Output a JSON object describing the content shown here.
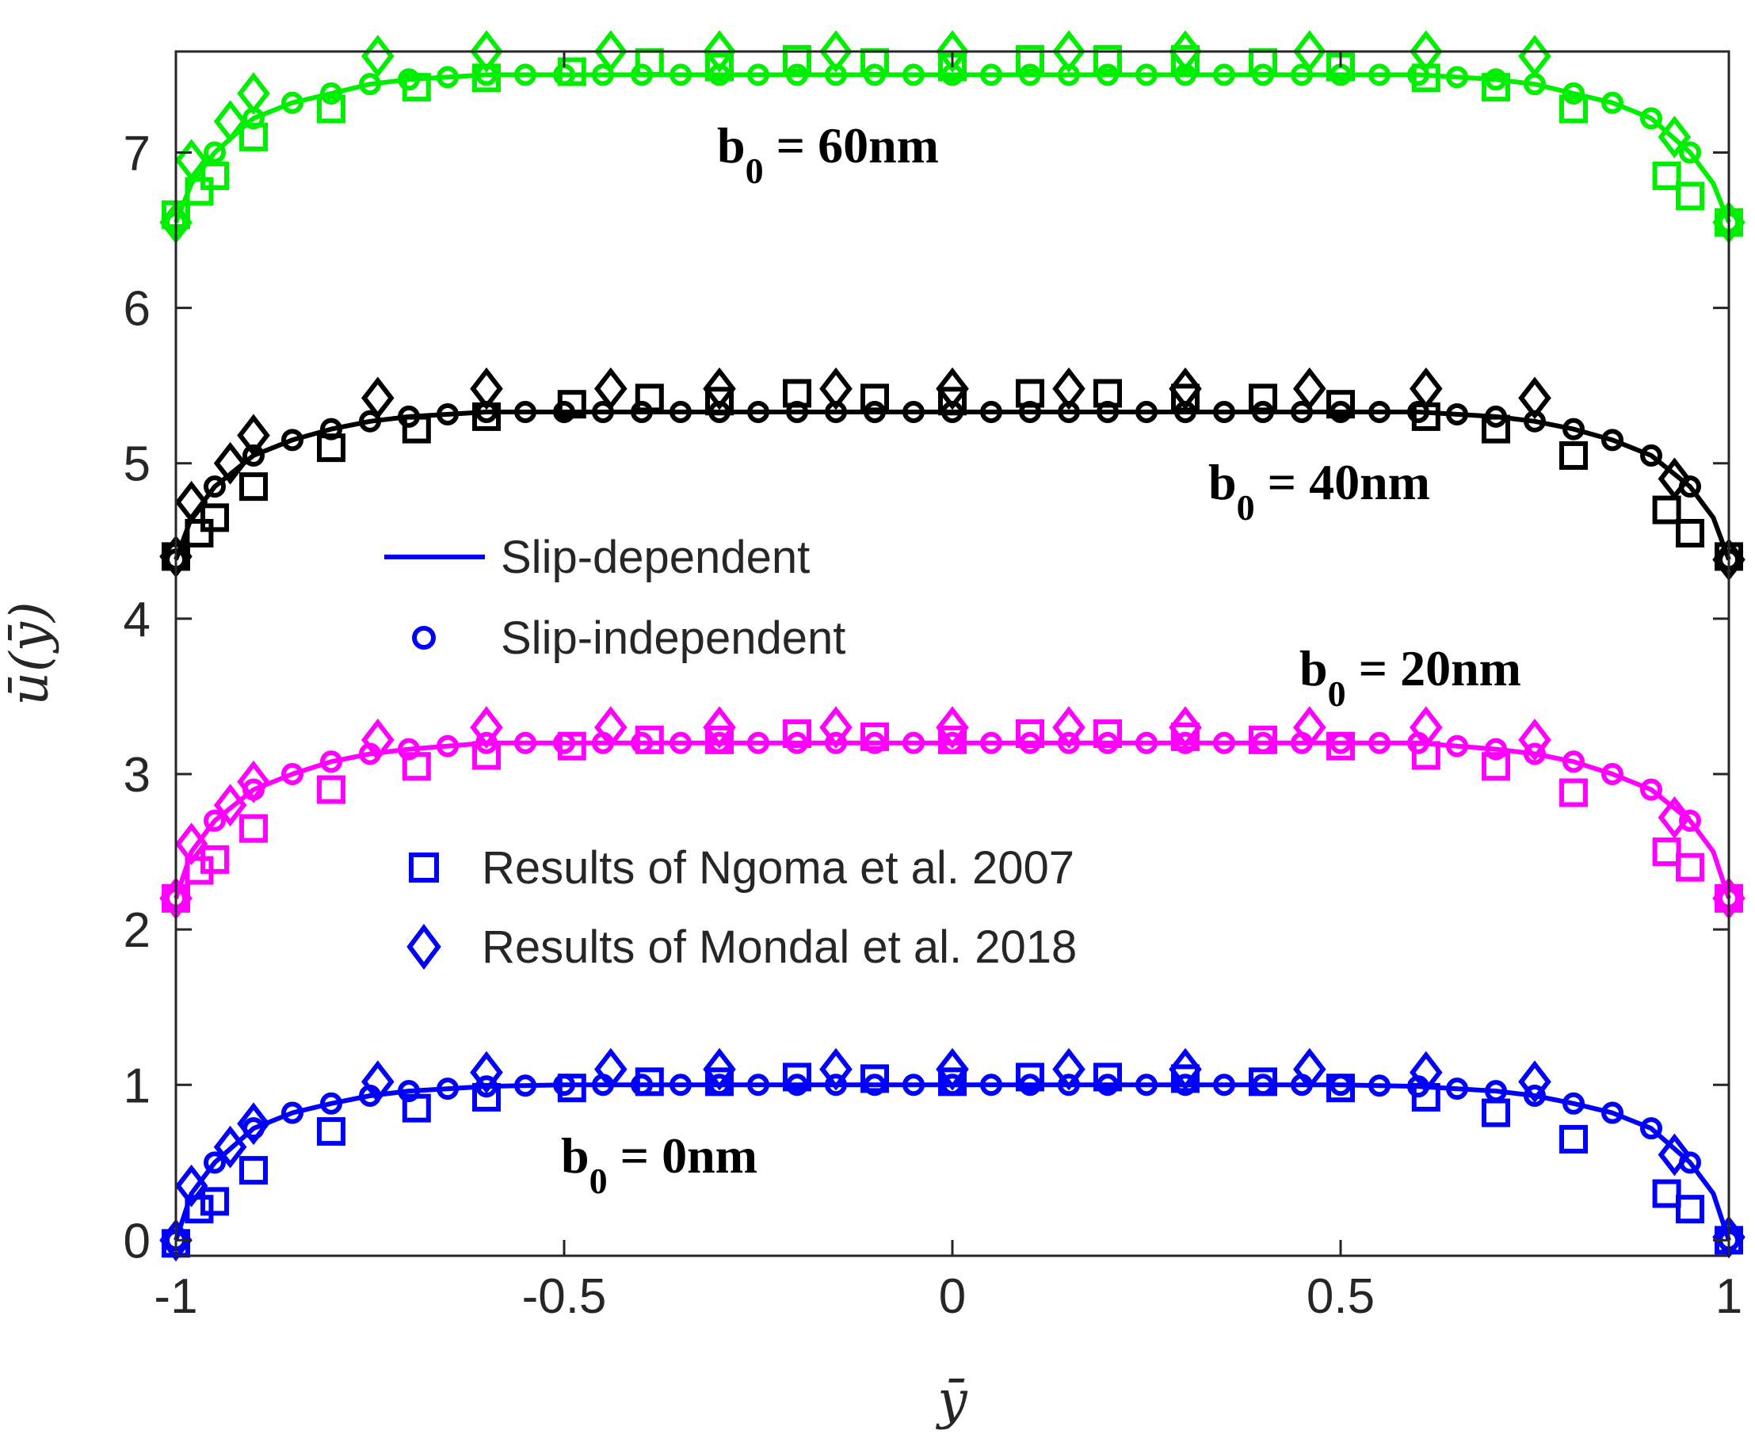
{
  "chart_data": {
    "type": "line",
    "xlabel": "ȳ",
    "ylabel": "ū(ȳ)",
    "xlim": [
      -1,
      1
    ],
    "ylim": [
      -0.1,
      7.65
    ],
    "xticks": [
      "-1",
      "-0.5",
      "0",
      "0.5",
      "1"
    ],
    "xtick_values": [
      -1,
      -0.5,
      0,
      0.5,
      1
    ],
    "yticks": [
      "0",
      "1",
      "2",
      "3",
      "4",
      "5",
      "6",
      "7"
    ],
    "ytick_values": [
      0,
      1,
      2,
      3,
      4,
      5,
      6,
      7
    ],
    "grid": false,
    "legend": [
      {
        "label": "Slip-dependent",
        "marker": "line",
        "color": "#0000ff"
      },
      {
        "label": "Slip-independent",
        "marker": "circle",
        "color": "#0000ff"
      },
      {
        "label": "Results of Ngoma et al. 2007",
        "marker": "square",
        "color": "#0000ff"
      },
      {
        "label": "Results of Mondal et al. 2018",
        "marker": "diamond",
        "color": "#0000ff"
      }
    ],
    "annotations": [
      {
        "text": "b",
        "sub": "0",
        "tail": " = 60nm",
        "series": "b0 = 60nm"
      },
      {
        "text": "b",
        "sub": "0",
        "tail": " = 40nm",
        "series": "b0 = 40nm"
      },
      {
        "text": "b",
        "sub": "0",
        "tail": " = 20nm",
        "series": "b0 = 20nm"
      },
      {
        "text": "b",
        "sub": "0",
        "tail": " = 0nm",
        "series": "b0 = 0nm"
      }
    ],
    "series": [
      {
        "name": "b0 = 60nm",
        "color": "#00ee00",
        "curve": {
          "x": [
            -1.0,
            -0.98,
            -0.95,
            -0.9,
            -0.85,
            -0.8,
            -0.75,
            -0.7,
            -0.6,
            -0.5,
            -0.4,
            -0.3,
            -0.2,
            -0.1,
            0.0,
            0.1,
            0.2,
            0.3,
            0.4,
            0.5,
            0.6,
            0.7,
            0.75,
            0.8,
            0.85,
            0.9,
            0.95,
            0.98,
            1.0
          ],
          "y": [
            6.55,
            6.8,
            7.0,
            7.22,
            7.32,
            7.38,
            7.44,
            7.47,
            7.5,
            7.5,
            7.5,
            7.5,
            7.5,
            7.5,
            7.5,
            7.5,
            7.5,
            7.5,
            7.5,
            7.5,
            7.5,
            7.47,
            7.44,
            7.38,
            7.32,
            7.22,
            7.0,
            6.8,
            6.55
          ]
        },
        "ngoma": {
          "x": [
            -1.0,
            -0.97,
            -0.95,
            -0.9,
            -0.8,
            -0.69,
            -0.6,
            -0.49,
            -0.39,
            -0.3,
            -0.2,
            -0.1,
            0.0,
            0.1,
            0.2,
            0.3,
            0.4,
            0.5,
            0.61,
            0.7,
            0.8,
            0.92,
            0.95,
            1.0
          ],
          "y": [
            6.6,
            6.75,
            6.85,
            7.1,
            7.28,
            7.42,
            7.48,
            7.52,
            7.58,
            7.55,
            7.6,
            7.58,
            7.55,
            7.6,
            7.6,
            7.6,
            7.58,
            7.55,
            7.48,
            7.42,
            7.28,
            6.85,
            6.72,
            6.55
          ]
        },
        "mondal": {
          "x": [
            -1.0,
            -0.98,
            -0.93,
            -0.9,
            -0.74,
            -0.6,
            -0.44,
            -0.3,
            -0.15,
            0.0,
            0.15,
            0.3,
            0.46,
            0.61,
            0.75,
            0.93,
            1.0
          ],
          "y": [
            6.55,
            6.95,
            7.2,
            7.38,
            7.62,
            7.65,
            7.65,
            7.65,
            7.65,
            7.65,
            7.65,
            7.65,
            7.65,
            7.65,
            7.62,
            7.1,
            6.55
          ]
        }
      },
      {
        "name": "b0 = 40nm",
        "color": "#000000",
        "curve": {
          "x": [
            -1.0,
            -0.98,
            -0.95,
            -0.9,
            -0.85,
            -0.8,
            -0.75,
            -0.7,
            -0.6,
            -0.5,
            -0.4,
            -0.3,
            -0.2,
            -0.1,
            0.0,
            0.1,
            0.2,
            0.3,
            0.4,
            0.5,
            0.6,
            0.7,
            0.75,
            0.8,
            0.85,
            0.9,
            0.95,
            0.98,
            1.0
          ],
          "y": [
            4.38,
            4.65,
            4.85,
            5.05,
            5.15,
            5.22,
            5.27,
            5.3,
            5.33,
            5.33,
            5.33,
            5.33,
            5.33,
            5.33,
            5.33,
            5.33,
            5.33,
            5.33,
            5.33,
            5.33,
            5.33,
            5.3,
            5.27,
            5.22,
            5.15,
            5.05,
            4.85,
            4.65,
            4.38
          ]
        },
        "ngoma": {
          "x": [
            -1.0,
            -0.97,
            -0.95,
            -0.9,
            -0.8,
            -0.69,
            -0.6,
            -0.49,
            -0.39,
            -0.3,
            -0.2,
            -0.1,
            0.0,
            0.1,
            0.2,
            0.3,
            0.4,
            0.5,
            0.61,
            0.7,
            0.8,
            0.92,
            0.95,
            1.0
          ],
          "y": [
            4.4,
            4.55,
            4.65,
            4.85,
            5.1,
            5.22,
            5.3,
            5.38,
            5.42,
            5.4,
            5.45,
            5.42,
            5.4,
            5.45,
            5.45,
            5.42,
            5.42,
            5.38,
            5.3,
            5.22,
            5.05,
            4.7,
            4.55,
            4.4
          ]
        },
        "mondal": {
          "x": [
            -1.0,
            -0.98,
            -0.93,
            -0.9,
            -0.74,
            -0.6,
            -0.44,
            -0.3,
            -0.15,
            0.0,
            0.15,
            0.3,
            0.46,
            0.61,
            0.75,
            0.93,
            1.0
          ],
          "y": [
            4.4,
            4.75,
            5.0,
            5.18,
            5.42,
            5.48,
            5.48,
            5.48,
            5.48,
            5.48,
            5.48,
            5.48,
            5.48,
            5.48,
            5.42,
            4.9,
            4.38
          ]
        }
      },
      {
        "name": "b0 = 20nm",
        "color": "#ff00ff",
        "curve": {
          "x": [
            -1.0,
            -0.98,
            -0.95,
            -0.9,
            -0.85,
            -0.8,
            -0.75,
            -0.7,
            -0.6,
            -0.5,
            -0.4,
            -0.3,
            -0.2,
            -0.1,
            0.0,
            0.1,
            0.2,
            0.3,
            0.4,
            0.5,
            0.6,
            0.7,
            0.75,
            0.8,
            0.85,
            0.9,
            0.95,
            0.98,
            1.0
          ],
          "y": [
            2.2,
            2.5,
            2.7,
            2.9,
            3.0,
            3.08,
            3.13,
            3.16,
            3.2,
            3.2,
            3.2,
            3.2,
            3.2,
            3.2,
            3.2,
            3.2,
            3.2,
            3.2,
            3.2,
            3.2,
            3.2,
            3.16,
            3.13,
            3.08,
            3.0,
            2.9,
            2.7,
            2.5,
            2.2
          ]
        },
        "ngoma": {
          "x": [
            -1.0,
            -0.97,
            -0.95,
            -0.9,
            -0.8,
            -0.69,
            -0.6,
            -0.49,
            -0.39,
            -0.3,
            -0.2,
            -0.1,
            0.0,
            0.1,
            0.2,
            0.3,
            0.4,
            0.5,
            0.61,
            0.7,
            0.8,
            0.92,
            0.95,
            1.0
          ],
          "y": [
            2.2,
            2.38,
            2.45,
            2.65,
            2.9,
            3.05,
            3.12,
            3.18,
            3.22,
            3.22,
            3.26,
            3.24,
            3.22,
            3.26,
            3.26,
            3.24,
            3.22,
            3.18,
            3.12,
            3.05,
            2.88,
            2.5,
            2.4,
            2.2
          ]
        },
        "mondal": {
          "x": [
            -1.0,
            -0.98,
            -0.93,
            -0.9,
            -0.74,
            -0.6,
            -0.44,
            -0.3,
            -0.15,
            0.0,
            0.15,
            0.3,
            0.46,
            0.61,
            0.75,
            0.93,
            1.0
          ],
          "y": [
            2.2,
            2.55,
            2.8,
            2.95,
            3.22,
            3.3,
            3.3,
            3.3,
            3.3,
            3.3,
            3.3,
            3.3,
            3.3,
            3.3,
            3.22,
            2.72,
            2.2
          ]
        }
      },
      {
        "name": "b0 = 0nm",
        "color": "#0000ff",
        "curve": {
          "x": [
            -1.0,
            -0.98,
            -0.95,
            -0.9,
            -0.85,
            -0.8,
            -0.75,
            -0.7,
            -0.6,
            -0.5,
            -0.4,
            -0.3,
            -0.2,
            -0.1,
            0.0,
            0.1,
            0.2,
            0.3,
            0.4,
            0.5,
            0.6,
            0.7,
            0.75,
            0.8,
            0.85,
            0.9,
            0.95,
            0.98,
            1.0
          ],
          "y": [
            0.0,
            0.3,
            0.5,
            0.72,
            0.82,
            0.88,
            0.93,
            0.96,
            0.99,
            1.0,
            1.0,
            1.0,
            1.0,
            1.0,
            1.0,
            1.0,
            1.0,
            1.0,
            1.0,
            1.0,
            0.99,
            0.96,
            0.93,
            0.88,
            0.82,
            0.72,
            0.5,
            0.3,
            0.0
          ]
        },
        "ngoma": {
          "x": [
            -1.0,
            -0.97,
            -0.95,
            -0.9,
            -0.8,
            -0.69,
            -0.6,
            -0.49,
            -0.39,
            -0.3,
            -0.2,
            -0.1,
            0.0,
            0.1,
            0.2,
            0.3,
            0.4,
            0.5,
            0.61,
            0.7,
            0.8,
            0.92,
            0.95,
            1.0
          ],
          "y": [
            -0.02,
            0.2,
            0.25,
            0.45,
            0.7,
            0.85,
            0.92,
            0.98,
            1.02,
            1.02,
            1.05,
            1.04,
            1.02,
            1.05,
            1.05,
            1.04,
            1.02,
            0.98,
            0.92,
            0.82,
            0.65,
            0.3,
            0.2,
            0.0
          ]
        },
        "mondal": {
          "x": [
            -1.0,
            -0.98,
            -0.93,
            -0.9,
            -0.74,
            -0.6,
            -0.44,
            -0.3,
            -0.15,
            0.0,
            0.15,
            0.3,
            0.46,
            0.61,
            0.75,
            0.93,
            1.0
          ],
          "y": [
            0.0,
            0.35,
            0.6,
            0.75,
            1.02,
            1.08,
            1.1,
            1.1,
            1.1,
            1.1,
            1.1,
            1.1,
            1.1,
            1.08,
            1.02,
            0.55,
            0.02
          ]
        }
      }
    ]
  }
}
